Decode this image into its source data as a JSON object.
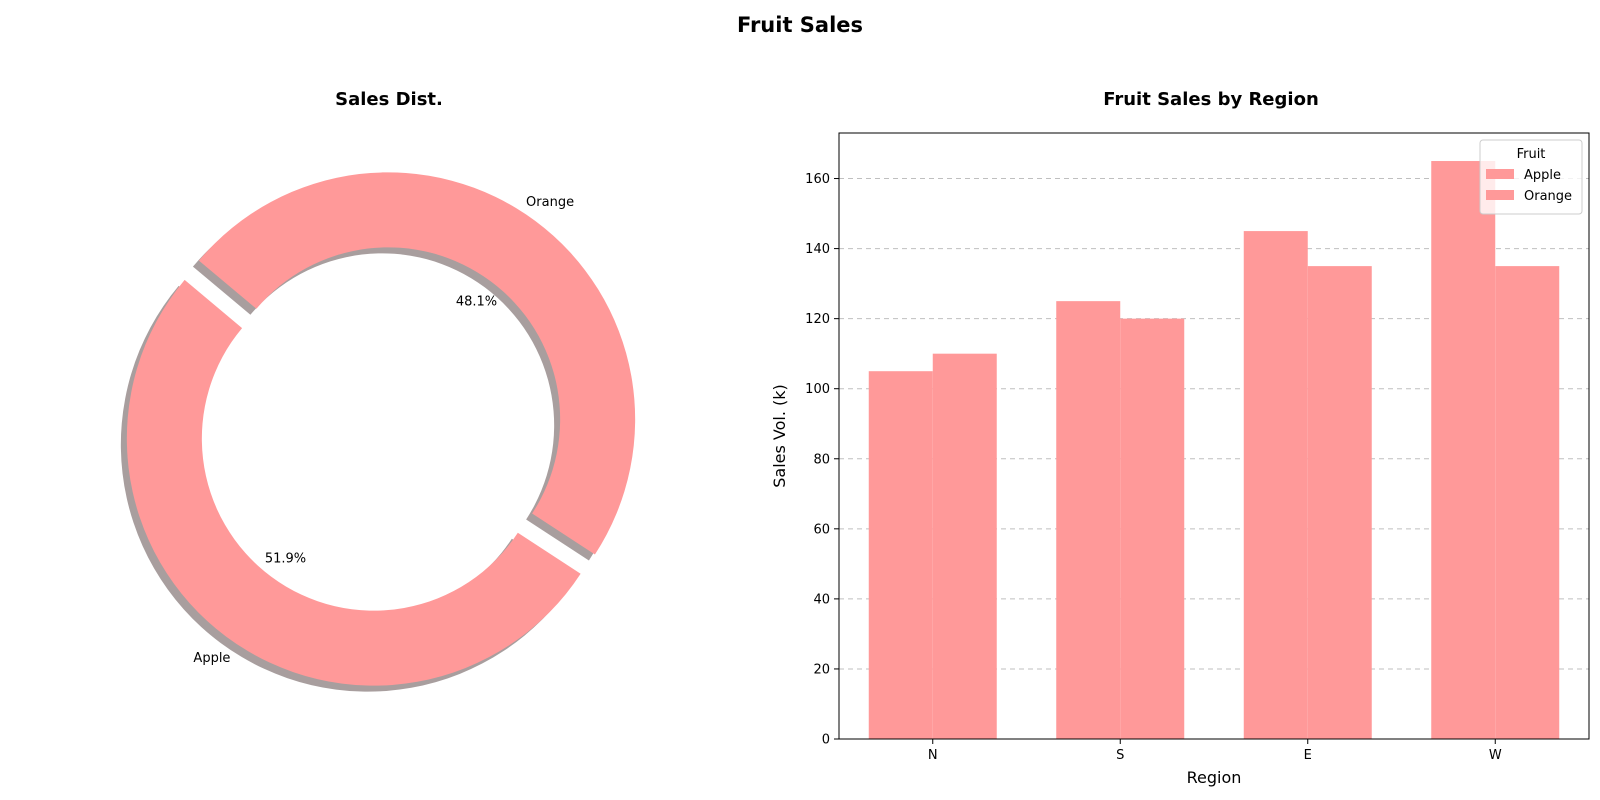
{
  "figure": {
    "title": "Fruit Sales"
  },
  "colors": {
    "apple": "#ff9999",
    "orange": "#ff9999",
    "shadow": "#7a6a6a"
  },
  "chart_data": [
    {
      "type": "pie",
      "style": "donut",
      "title": "Sales Dist.",
      "labels": [
        "Apple",
        "Orange"
      ],
      "values": [
        51.9,
        48.1
      ],
      "percent_labels": [
        "51.9%",
        "48.1%"
      ],
      "start_angle_deg": 140,
      "exploded": true,
      "shadow": true
    },
    {
      "type": "bar",
      "title": "Fruit Sales by Region",
      "xlabel": "Region",
      "ylabel": "Sales Vol. (k)",
      "categories": [
        "N",
        "S",
        "E",
        "W"
      ],
      "series": [
        {
          "name": "Apple",
          "values": [
            105,
            125,
            145,
            165
          ]
        },
        {
          "name": "Orange",
          "values": [
            110,
            120,
            135,
            135
          ]
        }
      ],
      "ylim": [
        0,
        173
      ],
      "yticks": [
        0,
        20,
        40,
        60,
        80,
        100,
        120,
        140,
        160
      ],
      "grid": "y-dashed",
      "legend": {
        "title": "Fruit",
        "placement": "top-right"
      }
    }
  ]
}
